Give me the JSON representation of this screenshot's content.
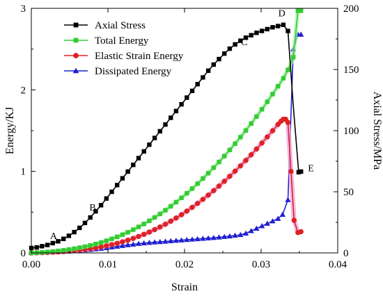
{
  "chart_data": {
    "type": "line",
    "xlabel": "Strain",
    "ylabel_left": "Energy/KJ",
    "ylabel_right": "Axial Stress/MPa",
    "xlim": [
      0,
      0.04
    ],
    "ylim_left": [
      0,
      3
    ],
    "ylim_right": [
      0,
      200
    ],
    "xticks": [
      "0.00",
      "0.01",
      "0.02",
      "0.03",
      "0.04"
    ],
    "yticks_left": [
      "0",
      "1",
      "2",
      "3"
    ],
    "yticks_right": [
      "0",
      "50",
      "100",
      "150",
      "200"
    ],
    "legend": "top-left",
    "series": [
      {
        "name": "Axial Stress",
        "axis": "right",
        "color": "#000000",
        "marker": "square",
        "x": [
          0,
          0.0007,
          0.0014,
          0.0021,
          0.0028,
          0.0035,
          0.0042,
          0.0049,
          0.0056,
          0.0063,
          0.007,
          0.0077,
          0.0084,
          0.0091,
          0.0098,
          0.0105,
          0.0112,
          0.0119,
          0.0126,
          0.0133,
          0.014,
          0.0147,
          0.0154,
          0.0161,
          0.0168,
          0.0175,
          0.0182,
          0.0189,
          0.0196,
          0.0203,
          0.021,
          0.0217,
          0.0224,
          0.0231,
          0.0238,
          0.0245,
          0.0252,
          0.0259,
          0.0266,
          0.0273,
          0.028,
          0.0287,
          0.0294,
          0.0301,
          0.0308,
          0.0315,
          0.0322,
          0.0329,
          0.0335,
          0.0342,
          0.0349,
          0.0352
        ],
        "y": [
          4,
          4.5,
          5.5,
          6.5,
          8,
          9.5,
          11.5,
          14,
          17,
          20.5,
          24.5,
          29,
          34,
          39,
          44.5,
          50,
          55.5,
          61,
          66.5,
          72,
          77.5,
          83,
          88.5,
          94,
          99.5,
          105,
          110.5,
          116,
          121.5,
          127,
          132.5,
          138,
          143.5,
          149,
          154,
          158.5,
          163,
          167,
          170.5,
          173.5,
          176,
          178,
          180,
          181.5,
          183,
          184.5,
          185.5,
          186.5,
          181.5,
          120,
          66,
          66.5
        ],
        "marks": [
          0,
          1,
          2,
          3,
          4,
          5,
          6,
          7,
          8,
          9,
          10,
          11,
          12,
          13,
          14,
          15,
          16,
          17,
          18,
          19,
          20,
          21,
          22,
          23,
          24,
          25,
          26,
          27,
          28,
          29,
          30,
          31,
          32,
          33,
          34,
          35,
          36,
          37,
          38,
          39,
          40,
          41,
          42,
          43,
          44,
          45,
          46,
          47,
          48,
          50,
          51
        ]
      },
      {
        "name": "Total Energy",
        "axis": "left",
        "color": "#33cc33",
        "marker": "square",
        "x": [
          0,
          0.0007,
          0.0014,
          0.0021,
          0.0028,
          0.0035,
          0.0042,
          0.0049,
          0.0056,
          0.0063,
          0.007,
          0.0077,
          0.0084,
          0.0091,
          0.0098,
          0.0105,
          0.0112,
          0.0119,
          0.0126,
          0.0133,
          0.014,
          0.0147,
          0.0154,
          0.0161,
          0.0168,
          0.0175,
          0.0182,
          0.0189,
          0.0196,
          0.0203,
          0.021,
          0.0217,
          0.0224,
          0.0231,
          0.0238,
          0.0245,
          0.0252,
          0.0259,
          0.0266,
          0.0273,
          0.028,
          0.0287,
          0.0294,
          0.0301,
          0.0308,
          0.0315,
          0.0322,
          0.0329,
          0.0335,
          0.0342,
          0.0348,
          0.0352
        ],
        "y": [
          0,
          0.003,
          0.007,
          0.012,
          0.018,
          0.025,
          0.033,
          0.042,
          0.052,
          0.064,
          0.077,
          0.092,
          0.109,
          0.128,
          0.149,
          0.172,
          0.197,
          0.224,
          0.253,
          0.285,
          0.319,
          0.355,
          0.394,
          0.435,
          0.478,
          0.524,
          0.572,
          0.623,
          0.676,
          0.731,
          0.789,
          0.85,
          0.913,
          0.978,
          1.046,
          1.116,
          1.188,
          1.263,
          1.34,
          1.42,
          1.502,
          1.587,
          1.673,
          1.762,
          1.854,
          1.948,
          2.044,
          2.143,
          2.244,
          2.4,
          2.97,
          2.97
        ]
      },
      {
        "name": "Elastic Strain Energy",
        "axis": "left",
        "color": "#dd2222",
        "marker": "circle",
        "x": [
          0,
          0.0007,
          0.0014,
          0.0021,
          0.0028,
          0.0035,
          0.0042,
          0.0049,
          0.0056,
          0.0063,
          0.007,
          0.0077,
          0.0084,
          0.0091,
          0.0098,
          0.0105,
          0.0112,
          0.0119,
          0.0126,
          0.0133,
          0.014,
          0.0147,
          0.0154,
          0.0161,
          0.0168,
          0.0175,
          0.0182,
          0.0189,
          0.0196,
          0.0203,
          0.021,
          0.0217,
          0.0224,
          0.0231,
          0.0238,
          0.0245,
          0.0252,
          0.0259,
          0.0266,
          0.0273,
          0.028,
          0.0287,
          0.0294,
          0.0301,
          0.0308,
          0.0315,
          0.0322,
          0.0326,
          0.0329,
          0.0332,
          0.0335,
          0.0339,
          0.0343,
          0.0348,
          0.0352
        ],
        "y": [
          0,
          0.001,
          0.003,
          0.005,
          0.008,
          0.012,
          0.017,
          0.022,
          0.028,
          0.035,
          0.043,
          0.052,
          0.062,
          0.074,
          0.087,
          0.102,
          0.118,
          0.136,
          0.156,
          0.178,
          0.202,
          0.228,
          0.256,
          0.286,
          0.318,
          0.352,
          0.389,
          0.428,
          0.469,
          0.513,
          0.559,
          0.607,
          0.657,
          0.709,
          0.764,
          0.82,
          0.879,
          0.94,
          1.003,
          1.068,
          1.135,
          1.204,
          1.275,
          1.348,
          1.423,
          1.499,
          1.577,
          1.616,
          1.64,
          1.64,
          1.6,
          1.0,
          0.4,
          0.25,
          0.26
        ]
      },
      {
        "name": "Dissipated Energy",
        "axis": "left",
        "color": "#1f1fd0",
        "marker": "triangle",
        "x": [
          0,
          0.0007,
          0.0014,
          0.0021,
          0.0028,
          0.0035,
          0.0042,
          0.0049,
          0.0056,
          0.0063,
          0.007,
          0.0077,
          0.0084,
          0.0091,
          0.0098,
          0.0105,
          0.0112,
          0.0119,
          0.0126,
          0.0133,
          0.014,
          0.0147,
          0.0154,
          0.0161,
          0.0168,
          0.0175,
          0.0182,
          0.0189,
          0.0196,
          0.0203,
          0.021,
          0.0217,
          0.0224,
          0.0231,
          0.0238,
          0.0245,
          0.0252,
          0.0259,
          0.0266,
          0.0273,
          0.028,
          0.0287,
          0.0294,
          0.0301,
          0.0308,
          0.0315,
          0.0322,
          0.0328,
          0.0335,
          0.0342,
          0.0348,
          0.0352
        ],
        "y": [
          0,
          0.002,
          0.004,
          0.007,
          0.01,
          0.013,
          0.016,
          0.02,
          0.024,
          0.029,
          0.034,
          0.04,
          0.047,
          0.054,
          0.062,
          0.07,
          0.079,
          0.088,
          0.097,
          0.105,
          0.113,
          0.12,
          0.126,
          0.131,
          0.136,
          0.141,
          0.146,
          0.151,
          0.156,
          0.161,
          0.166,
          0.171,
          0.176,
          0.181,
          0.186,
          0.192,
          0.198,
          0.205,
          0.213,
          0.222,
          0.24,
          0.27,
          0.3,
          0.33,
          0.36,
          0.39,
          0.42,
          0.47,
          0.65,
          2.5,
          2.68,
          2.68
        ]
      }
    ],
    "annotations": [
      {
        "text": "A",
        "x": 0.0029,
        "y": 0.17
      },
      {
        "text": "B",
        "x": 0.008,
        "y": 0.52
      },
      {
        "text": "C",
        "x": 0.0278,
        "y": 2.55
      },
      {
        "text": "D",
        "x": 0.0327,
        "y": 2.9
      },
      {
        "text": "E",
        "x": 0.0365,
        "y": 1.0
      }
    ]
  }
}
